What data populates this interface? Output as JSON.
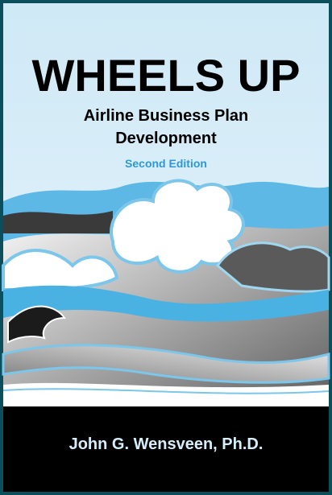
{
  "cover": {
    "title": "WHEELS UP",
    "subtitle_lines": [
      "Airline Business Plan",
      "Development"
    ],
    "edition": "Second Edition",
    "author": "John G. Wensveen, Ph.D."
  }
}
